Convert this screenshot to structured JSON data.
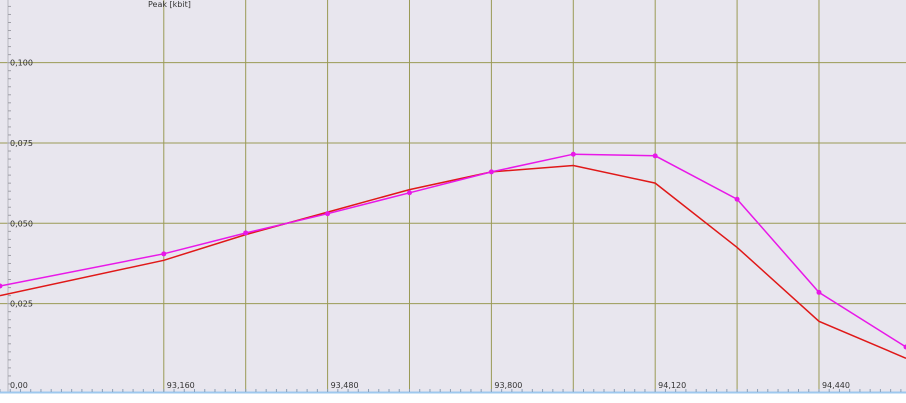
{
  "colors": {
    "plot_background": "#e8e6ee",
    "grid": "#9a9a55",
    "series_red": "#e01818",
    "series_magenta": "#e818e8",
    "axis_bottom": "#9ec8ee"
  },
  "chart_data": {
    "type": "line",
    "ylabel": "Peak [kbit]",
    "x_tick_labels": [
      "0,00",
      "93,160",
      "93,480",
      "93,800",
      "94,120",
      "94,440"
    ],
    "y_tick_labels": [
      "0,100",
      "0,075",
      "0,050",
      "0,025"
    ],
    "xlim": [
      92.84,
      94.61
    ],
    "ylim": [
      -0.0025,
      0.1195
    ],
    "grid": true,
    "x_gridlines": [
      93.16,
      93.32,
      93.48,
      93.64,
      93.8,
      93.96,
      94.12,
      94.28,
      94.44
    ],
    "y_gridlines": [
      0.025,
      0.05,
      0.075,
      0.1
    ],
    "series": [
      {
        "color_key": "series_red",
        "markers": false,
        "x": [
          92.84,
          93.16,
          93.32,
          93.48,
          93.64,
          93.8,
          93.96,
          94.12,
          94.28,
          94.44,
          94.61
        ],
        "y": [
          0.0275,
          0.0385,
          0.0465,
          0.0535,
          0.0605,
          0.066,
          0.068,
          0.0625,
          0.0425,
          0.0195,
          0.008
        ]
      },
      {
        "color_key": "series_magenta",
        "markers": true,
        "x": [
          92.84,
          93.16,
          93.32,
          93.48,
          93.64,
          93.8,
          93.96,
          94.12,
          94.28,
          94.44,
          94.61
        ],
        "y": [
          0.0305,
          0.0405,
          0.047,
          0.053,
          0.0595,
          0.066,
          0.0715,
          0.071,
          0.0575,
          0.0285,
          0.0115
        ]
      }
    ]
  }
}
